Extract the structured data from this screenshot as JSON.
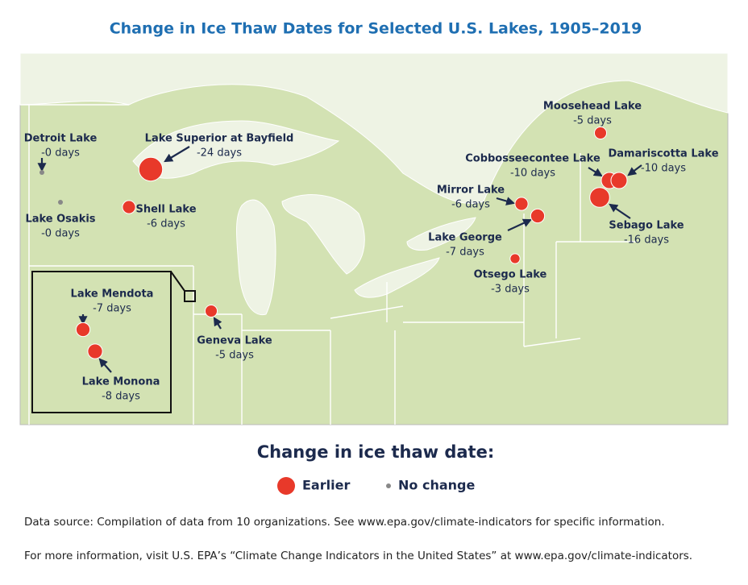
{
  "title": "Change in Ice Thaw Dates for Selected U.S. Lakes, 1905–2019",
  "lakes": [
    {
      "name": "Detroit Lake",
      "days": 0,
      "label": "-0 days"
    },
    {
      "name": "Lake Osakis",
      "days": 0,
      "label": "-0 days"
    },
    {
      "name": "Lake Superior at Bayfield",
      "days": -24,
      "label": "-24 days"
    },
    {
      "name": "Shell Lake",
      "days": -6,
      "label": "-6 days"
    },
    {
      "name": "Lake Mendota",
      "days": -7,
      "label": "-7 days"
    },
    {
      "name": "Lake Monona",
      "days": -8,
      "label": "-8 days"
    },
    {
      "name": "Geneva Lake",
      "days": -5,
      "label": "-5 days"
    },
    {
      "name": "Mirror Lake",
      "days": -6,
      "label": "-6 days"
    },
    {
      "name": "Lake George",
      "days": -7,
      "label": "-7 days"
    },
    {
      "name": "Otsego Lake",
      "days": -3,
      "label": "-3 days"
    },
    {
      "name": "Moosehead Lake",
      "days": -5,
      "label": "-5 days"
    },
    {
      "name": "Cobbosseecontee Lake",
      "days": -10,
      "label": "-10 days"
    },
    {
      "name": "Damariscotta Lake",
      "days": -10,
      "label": "-10 days"
    },
    {
      "name": "Sebago Lake",
      "days": -16,
      "label": "-16 days"
    }
  ],
  "legend": {
    "title": "Change in ice thaw date:",
    "items": [
      {
        "label": "Earlier",
        "color": "#e8392a"
      },
      {
        "label": "No change",
        "color": "#888888"
      }
    ]
  },
  "footer": {
    "source": "Data source: Compilation of data from 10 organizations. See www.epa.gov/climate-indicators for specific information.",
    "more": "For more information, visit U.S. EPA’s “Climate Change Indicators in the United States” at www.epa.gov/climate-indicators."
  }
}
